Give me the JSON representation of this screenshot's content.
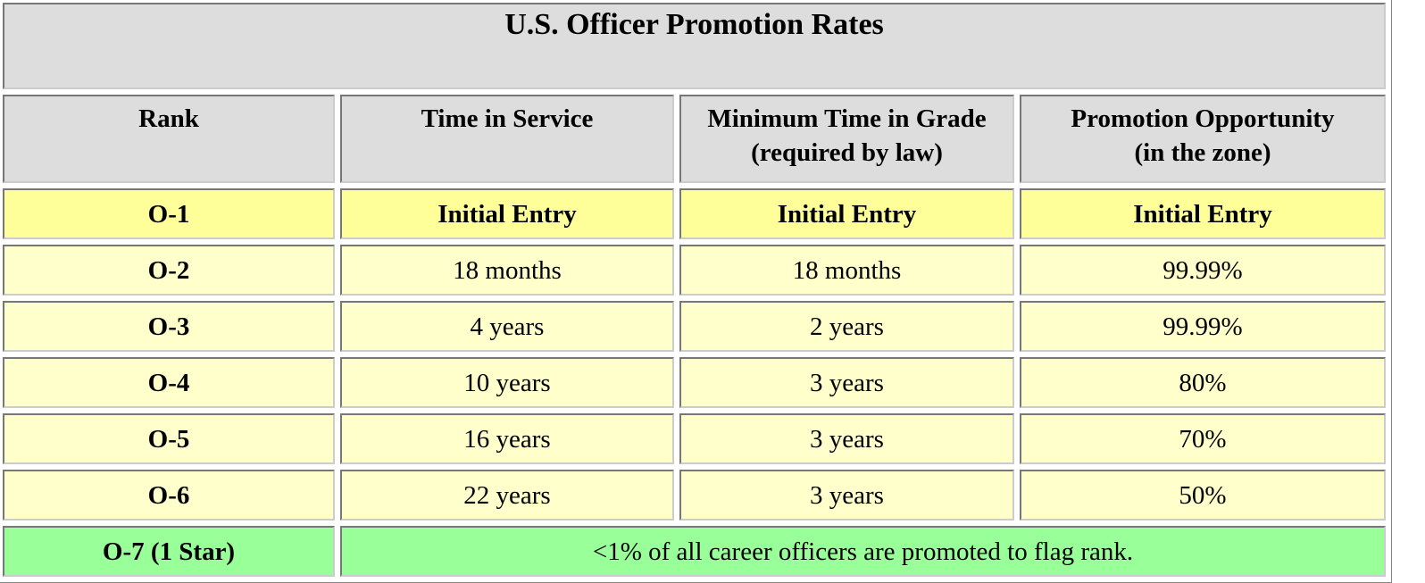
{
  "table": {
    "title": "U.S. Officer Promotion Rates",
    "header": [
      "Rank",
      "Time in Service",
      "Minimum Time in Grade\n(required by law)",
      "Promotion Opportunity\n(in the zone)"
    ],
    "rows": [
      [
        "O-1",
        "Initial Entry",
        "Initial Entry",
        "Initial Entry"
      ],
      [
        "O-2",
        "18 months",
        "18 months",
        "99.99%"
      ],
      [
        "O-3",
        "4 years",
        "2 years",
        "99.99%"
      ],
      [
        "O-4",
        "10 years",
        "3 years",
        "80%"
      ],
      [
        "O-5",
        "16 years",
        "3 years",
        "70%"
      ],
      [
        "O-6",
        "22 years",
        "3 years",
        "50%"
      ]
    ],
    "flag_row": {
      "rank": "O-7 (1 Star)",
      "note": "<1% of all career officers are promoted to flag rank."
    }
  }
}
